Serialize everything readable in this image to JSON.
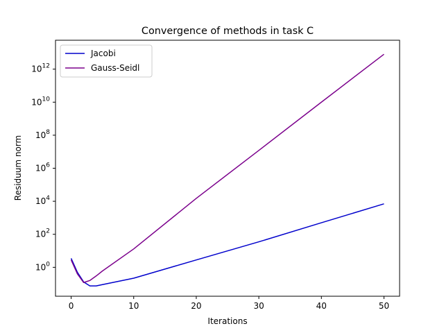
{
  "chart_data": {
    "type": "line",
    "title": "Convergence of methods in task C",
    "xlabel": "Iterations",
    "ylabel": "Residuum norm",
    "xlim": [
      -2.5,
      52.5
    ],
    "ylim_log10": [
      -1.75,
      13.75
    ],
    "yscale": "log",
    "grid": false,
    "legend": "top-left",
    "x_ticks": [
      0,
      10,
      20,
      30,
      40,
      50
    ],
    "x_tick_labels": [
      "0",
      "10",
      "20",
      "30",
      "40",
      "50"
    ],
    "y_ticks_log10": [
      0,
      2,
      4,
      6,
      8,
      10,
      12
    ],
    "y_tick_labels": [
      "10^0",
      "10^2",
      "10^4",
      "10^6",
      "10^8",
      "10^10",
      "10^12"
    ],
    "series": [
      {
        "name": "Jacobi",
        "color": "#0000cc",
        "x": [
          0,
          1,
          2,
          3,
          4,
          5,
          10,
          20,
          30,
          40,
          50
        ],
        "y": [
          3.5,
          0.5,
          0.13,
          0.075,
          0.075,
          0.09,
          0.22,
          2.8,
          35,
          500,
          7000
        ]
      },
      {
        "name": "Gauss-Seidl",
        "color": "#7b008c",
        "x": [
          0,
          1,
          2,
          3,
          4,
          5,
          10,
          20,
          30,
          40,
          50
        ],
        "y": [
          2.8,
          0.4,
          0.12,
          0.16,
          0.3,
          0.6,
          13,
          15000,
          12000000.0,
          10000000000.0,
          8000000000000.0
        ]
      }
    ]
  }
}
